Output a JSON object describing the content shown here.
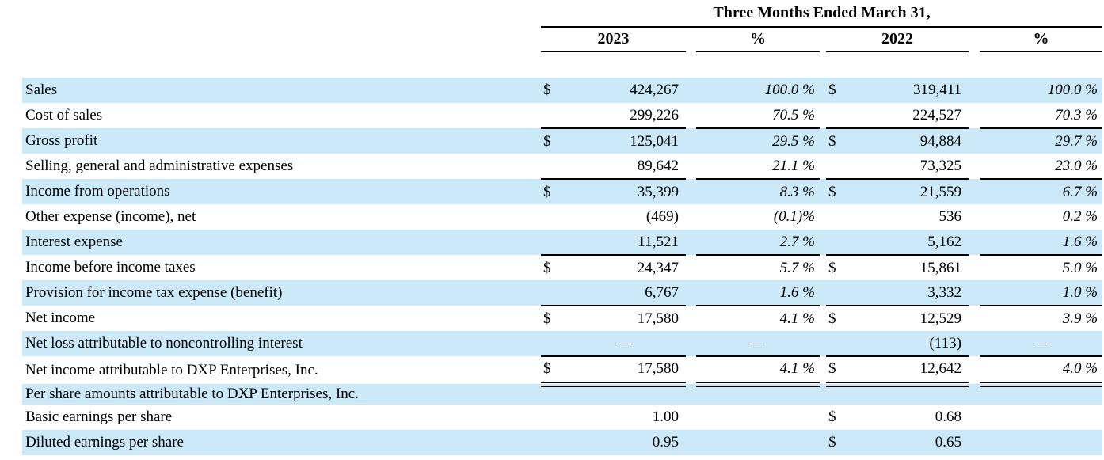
{
  "colors": {
    "stripe": "#cce9fa",
    "text": "#000000",
    "line": "#000000"
  },
  "table": {
    "title": "Three Months Ended March 31,",
    "columns": [
      "2023",
      "%",
      "2022",
      "%"
    ],
    "rows": [
      {
        "label": "Sales",
        "d1": "$",
        "v1": "424,267",
        "p1": "100.0 %",
        "d2": "$",
        "v2": "319,411",
        "p2": "100.0 %",
        "stripe": true,
        "border": "none"
      },
      {
        "label": "Cost of sales",
        "d1": "",
        "v1": "299,226",
        "p1": "70.5 %",
        "d2": "",
        "v2": "224,527",
        "p2": "70.3 %",
        "stripe": false,
        "border": "single"
      },
      {
        "label": "Gross profit",
        "d1": "$",
        "v1": "125,041",
        "p1": "29.5 %",
        "d2": "$",
        "v2": "94,884",
        "p2": "29.7 %",
        "stripe": true,
        "border": "none"
      },
      {
        "label": "Selling, general and administrative expenses",
        "d1": "",
        "v1": "89,642",
        "p1": "21.1 %",
        "d2": "",
        "v2": "73,325",
        "p2": "23.0 %",
        "stripe": false,
        "border": "single"
      },
      {
        "label": "Income from operations",
        "d1": "$",
        "v1": "35,399",
        "p1": "8.3 %",
        "d2": "$",
        "v2": "21,559",
        "p2": "6.7 %",
        "stripe": true,
        "border": "none"
      },
      {
        "label": "Other expense (income), net",
        "d1": "",
        "v1": "(469)",
        "p1": "(0.1)%",
        "d2": "",
        "v2": "536",
        "p2": "0.2 %",
        "stripe": false,
        "border": "none"
      },
      {
        "label": "Interest expense",
        "d1": "",
        "v1": "11,521",
        "p1": "2.7 %",
        "d2": "",
        "v2": "5,162",
        "p2": "1.6 %",
        "stripe": true,
        "border": "single"
      },
      {
        "label": "Income before income taxes",
        "d1": "$",
        "v1": "24,347",
        "p1": "5.7 %",
        "d2": "$",
        "v2": "15,861",
        "p2": "5.0 %",
        "stripe": false,
        "border": "none"
      },
      {
        "label": "Provision for income tax expense (benefit)",
        "d1": "",
        "v1": "6,767",
        "p1": "1.6 %",
        "d2": "",
        "v2": "3,332",
        "p2": "1.0 %",
        "stripe": true,
        "border": "single"
      },
      {
        "label": "Net income",
        "d1": "$",
        "v1": "17,580",
        "p1": "4.1 %",
        "d2": "$",
        "v2": "12,529",
        "p2": "3.9 %",
        "stripe": false,
        "border": "none"
      },
      {
        "label": "Net loss attributable to noncontrolling interest",
        "d1": "",
        "v1": "—",
        "p1": "—",
        "d2": "",
        "v2": "(113)",
        "p2": "—",
        "stripe": true,
        "border": "single"
      },
      {
        "label": "Net income attributable to DXP Enterprises, Inc.",
        "d1": "$",
        "v1": "17,580",
        "p1": "4.1 %",
        "d2": "$",
        "v2": "12,642",
        "p2": "4.0 %",
        "stripe": false,
        "border": "double",
        "size": "lg"
      },
      {
        "label": "Per share amounts attributable to DXP Enterprises, Inc.",
        "d1": "",
        "v1": "",
        "p1": "",
        "d2": "",
        "v2": "",
        "p2": "",
        "stripe": true,
        "border": "none",
        "size": "sm"
      },
      {
        "label": "Basic earnings per share",
        "d1": "",
        "v1": "1.00",
        "p1": "",
        "d2": "$",
        "v2": "0.68",
        "p2": "",
        "stripe": false,
        "border": "none"
      },
      {
        "label": "Diluted earnings per share",
        "d1": "",
        "v1": "0.95",
        "p1": "",
        "d2": "$",
        "v2": "0.65",
        "p2": "",
        "stripe": true,
        "border": "none"
      }
    ]
  }
}
